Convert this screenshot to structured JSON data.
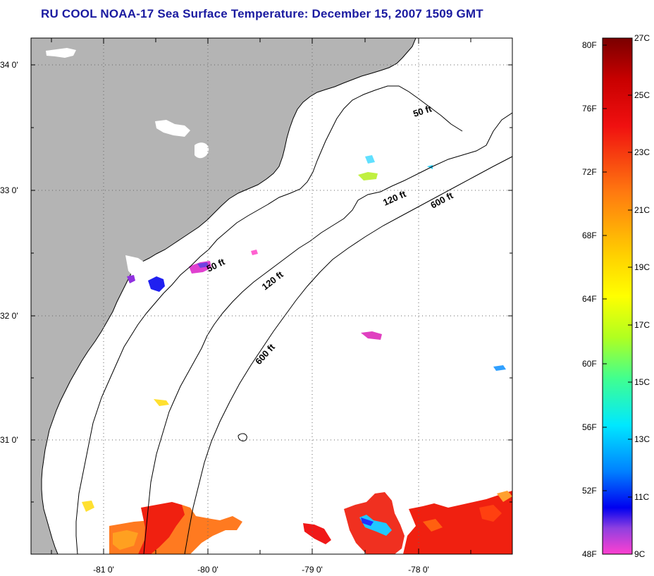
{
  "title": "RU COOL  NOAA-17  Sea Surface Temperature:  December 15, 2007 1509 GMT",
  "latitude_labels": [
    "34 0'",
    "33 0'",
    "32 0'",
    "31 0'"
  ],
  "longitude_labels": [
    "-81 0'",
    "-80 0'",
    "-79 0'",
    "-78 0'"
  ],
  "isobath_labels": {
    "a": "50 ft",
    "b": "120 ft",
    "c": "600 ft",
    "d": "50 ft",
    "e": "120 ft",
    "f": "600 ft"
  },
  "colorbar": {
    "fahrenheit_labels": [
      "80F",
      "76F",
      "72F",
      "68F",
      "64F",
      "60F",
      "56F",
      "52F",
      "48F"
    ],
    "celsius_labels": [
      "27C",
      "25C",
      "23C",
      "21C",
      "19C",
      "17C",
      "15C",
      "13C",
      "11C",
      "9C"
    ]
  },
  "colors": {
    "title": "#1a1aa0",
    "land": "#b4b4b4",
    "ocean": "#ffffff",
    "grid": "#666666"
  }
}
